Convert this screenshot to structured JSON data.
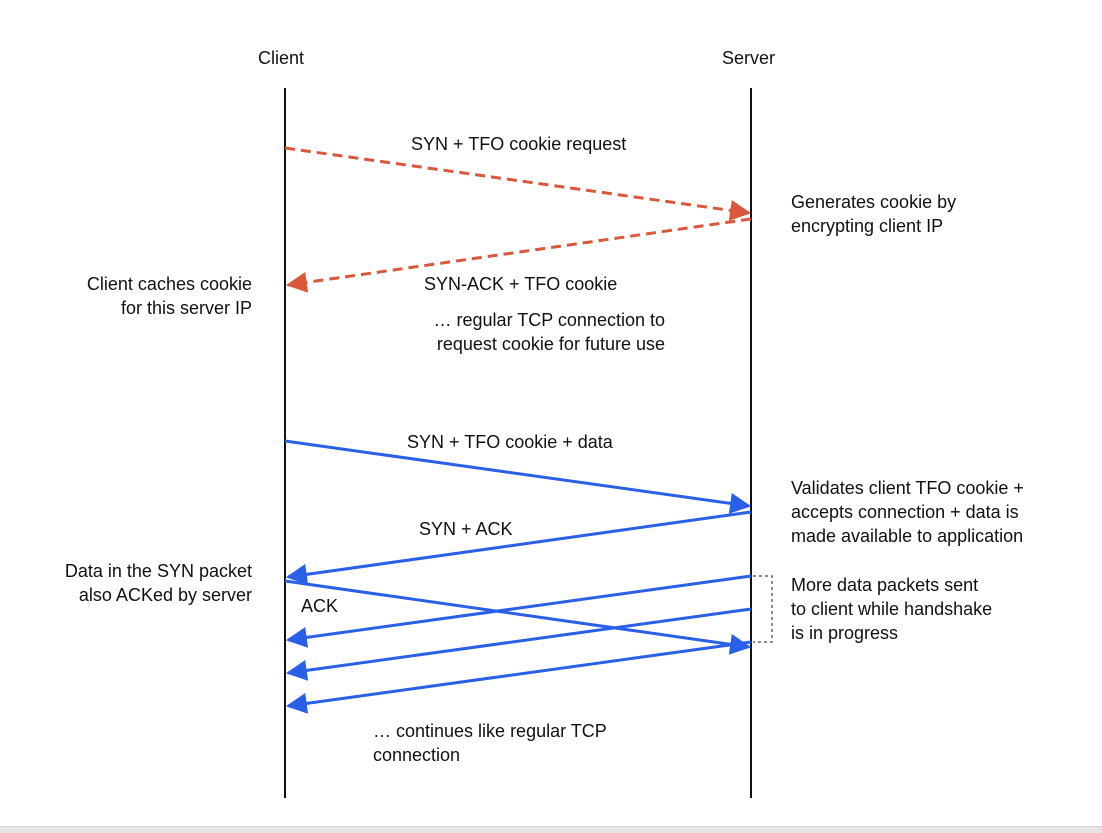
{
  "participants": {
    "client": "Client",
    "server": "Server"
  },
  "colors": {
    "lifeline": "#111111",
    "cookie_request_flow": "#d9573b",
    "fast_open_flow": "#2a5fe8",
    "bracket": "#444444"
  },
  "messages": {
    "syn_cookie_request": "SYN + TFO cookie request",
    "synack_cookie": "SYN-ACK + TFO cookie",
    "regular_tcp_note": "… regular TCP connection to\nrequest cookie for future use",
    "syn_cookie_data": "SYN + TFO cookie + data",
    "syn_ack": "SYN + ACK",
    "ack": "ACK",
    "continues_note": "… continues like regular TCP\nconnection"
  },
  "notes": {
    "server_generates": "Generates cookie by\nencrypting client IP",
    "client_caches": "Client caches cookie\nfor this server IP",
    "server_validates": "Validates client TFO cookie +\naccepts connection + data is\nmade available to application",
    "client_acked": "Data in the SYN packet\nalso ACKed by server",
    "server_more_data": "More data packets sent\nto client while handshake\nis in progress"
  }
}
